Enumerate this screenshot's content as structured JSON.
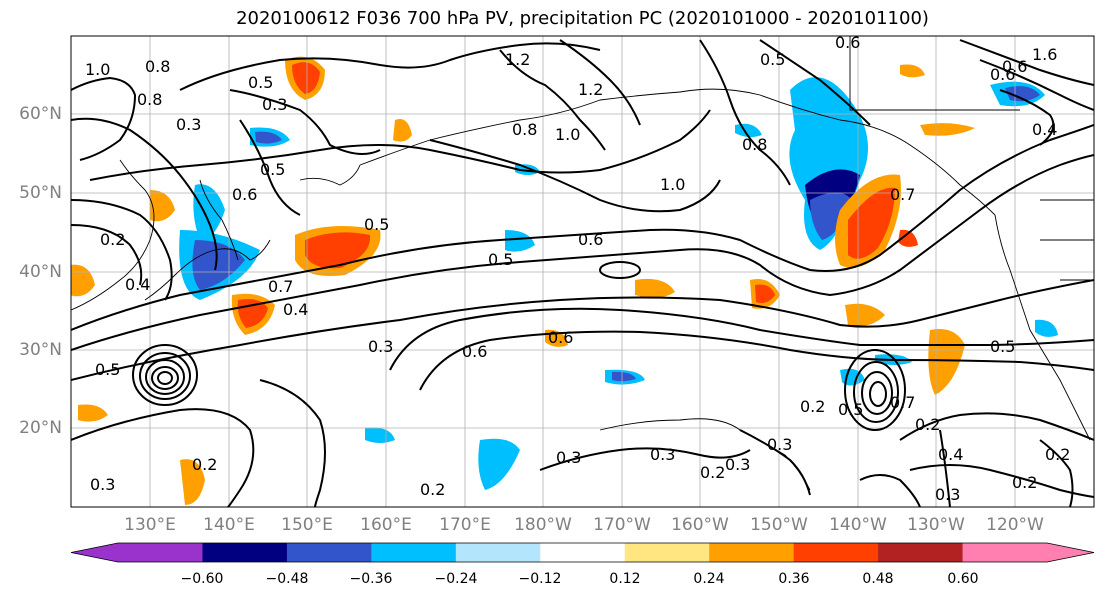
{
  "title": "2020100612 F036 700 hPa PV, precipitation PC (2020101000 - 2020101100)",
  "lat_labels": [
    "60°N",
    "50°N",
    "40°N",
    "30°N",
    "20°N"
  ],
  "lon_labels": [
    "130°E",
    "140°E",
    "150°E",
    "160°E",
    "170°E",
    "180°W",
    "170°W",
    "160°W",
    "150°W",
    "140°W",
    "130°W",
    "120°W"
  ],
  "colorbar": {
    "colors": [
      "#9933cc",
      "#000080",
      "#3355cc",
      "#00bfff",
      "#b3e5fc",
      "#ffffff",
      "#ffe680",
      "#ffa000",
      "#ff4000",
      "#b22222",
      "#ff80b0"
    ],
    "tick_labels": [
      "−0.60",
      "−0.48",
      "−0.36",
      "−0.24",
      "−0.12",
      "0.12",
      "0.24",
      "0.36",
      "0.48",
      "0.60"
    ]
  },
  "contour_labels": [
    "0.5",
    "0.3",
    "0.8",
    "1.0",
    "1.2",
    "1.2",
    "0.8",
    "1.0",
    "0.5",
    "0.8",
    "1.0",
    "1.6",
    "0.6",
    "0.4",
    "0.3",
    "0.5",
    "0.6",
    "0.4",
    "0.7",
    "0.5",
    "0.6",
    "0.5",
    "0.4",
    "0.7",
    "0.5",
    "0.2",
    "0.3",
    "0.6",
    "0.6",
    "0.3",
    "0.2",
    "0.5",
    "0.3",
    "0.3",
    "0.2",
    "0.3",
    "0.2",
    "0.4",
    "0.3",
    "0.2",
    "0.2",
    "0.2",
    "0.8",
    "0.6",
    "0.5",
    "0.7",
    "0.6",
    "0.2",
    "0.3"
  ]
}
